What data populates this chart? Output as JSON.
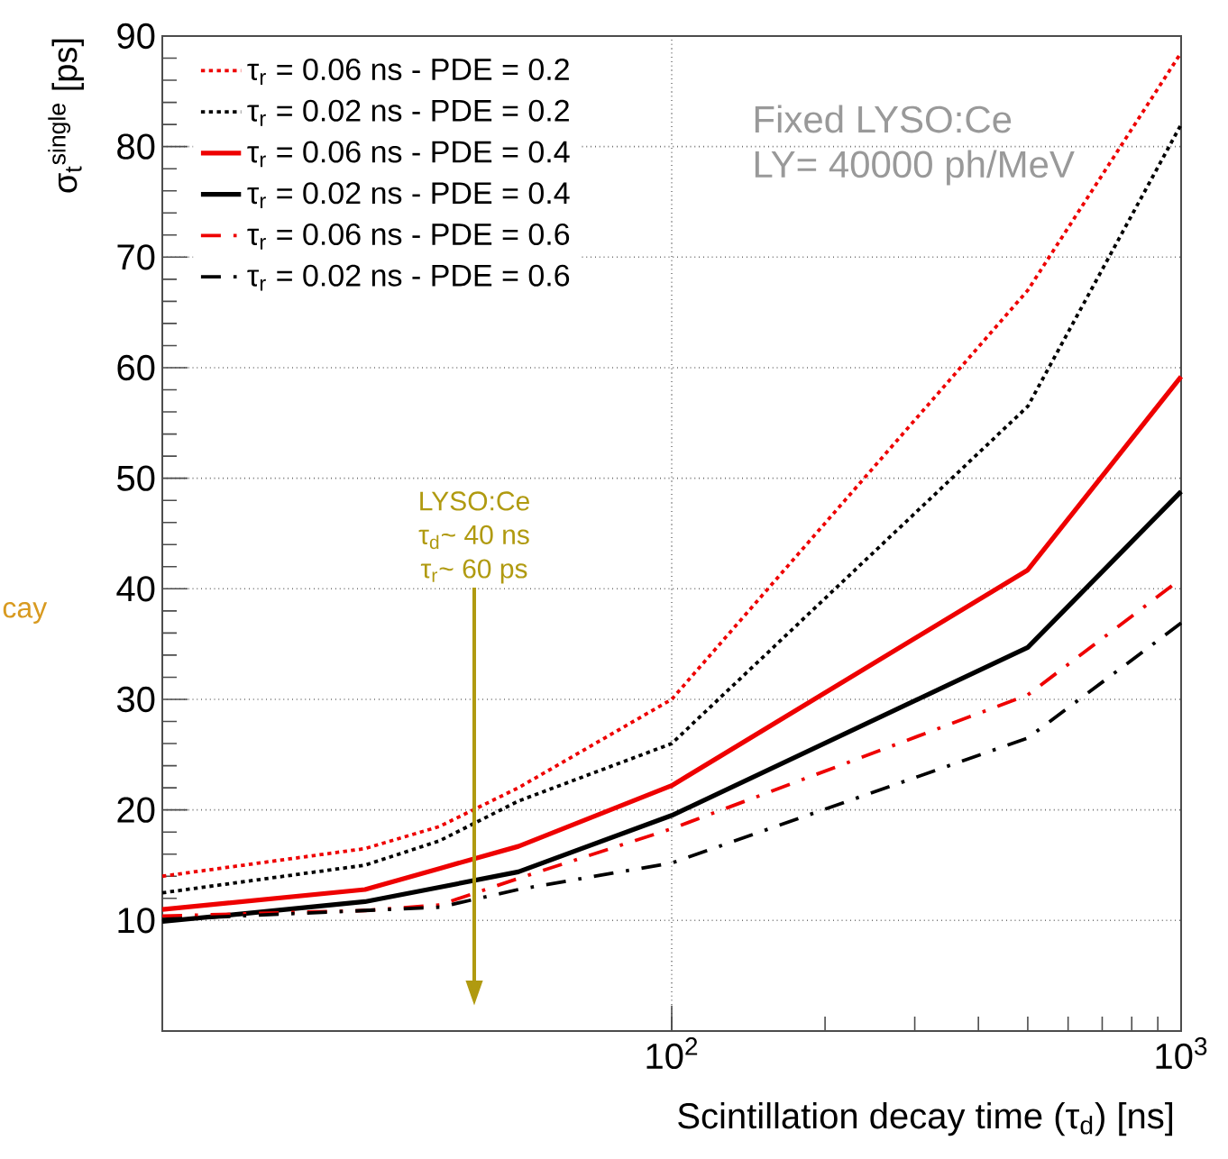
{
  "chart_data": {
    "type": "line",
    "xlabel": "Scintillation decay time (τ$_{d}$) [ns]",
    "ylabel": "σ$_{t}$$^{single}$ [ps]",
    "log": "x",
    "grid": true,
    "legend": "top left",
    "xlim": [
      10,
      1000
    ],
    "xticks": [
      {
        "value": 100,
        "label": "10$^{2}$"
      },
      {
        "value": 1000,
        "label": "10$^{3}$"
      }
    ],
    "ylim": [
      0,
      90
    ],
    "yticks": [
      10,
      20,
      30,
      40,
      50,
      60,
      70,
      80,
      90
    ],
    "x": [
      10,
      25,
      35,
      50,
      100,
      500,
      1000
    ],
    "series": [
      {
        "name": "τ$_{r}$ = 0.06 ns - PDE = 0.2",
        "color": "#ee0000",
        "line_style": "dotted",
        "values": [
          14.0,
          16.5,
          18.5,
          22.0,
          30.0,
          67.0,
          88.5
        ]
      },
      {
        "name": "τ$_{r}$ = 0.02 ns - PDE = 0.2",
        "color": "#000000",
        "line_style": "dotted",
        "values": [
          12.5,
          15.0,
          17.2,
          20.8,
          26.0,
          56.5,
          82.0
        ]
      },
      {
        "name": "τ$_{r}$ = 0.06 ns - PDE = 0.4",
        "color": "#ee0000",
        "line_style": "solid",
        "values": [
          11.0,
          12.8,
          14.7,
          16.7,
          22.2,
          41.7,
          59.2
        ]
      },
      {
        "name": "τ$_{r}$ = 0.02 ns - PDE = 0.4",
        "color": "#000000",
        "line_style": "solid",
        "values": [
          9.9,
          11.7,
          13.0,
          14.4,
          19.5,
          34.7,
          48.8
        ]
      },
      {
        "name": "τ$_{r}$ = 0.06 ns - PDE = 0.6",
        "color": "#ee0000",
        "line_style": "dashdot",
        "values": [
          10.4,
          10.9,
          11.4,
          13.8,
          18.3,
          30.4,
          40.9
        ]
      },
      {
        "name": "τ$_{r}$ = 0.02 ns - PDE = 0.6",
        "color": "#000000",
        "line_style": "dashdot",
        "values": [
          10.1,
          10.9,
          11.2,
          12.8,
          15.2,
          26.5,
          36.9
        ]
      }
    ],
    "annotations": [
      "Fixed LYSO:Ce",
      "LY= 40000 ph/MeV",
      "LYSO:Ce",
      "τ$_{d}$~ 40 ns",
      "τ$_{r}$~ 60 ps",
      "cay"
    ]
  }
}
